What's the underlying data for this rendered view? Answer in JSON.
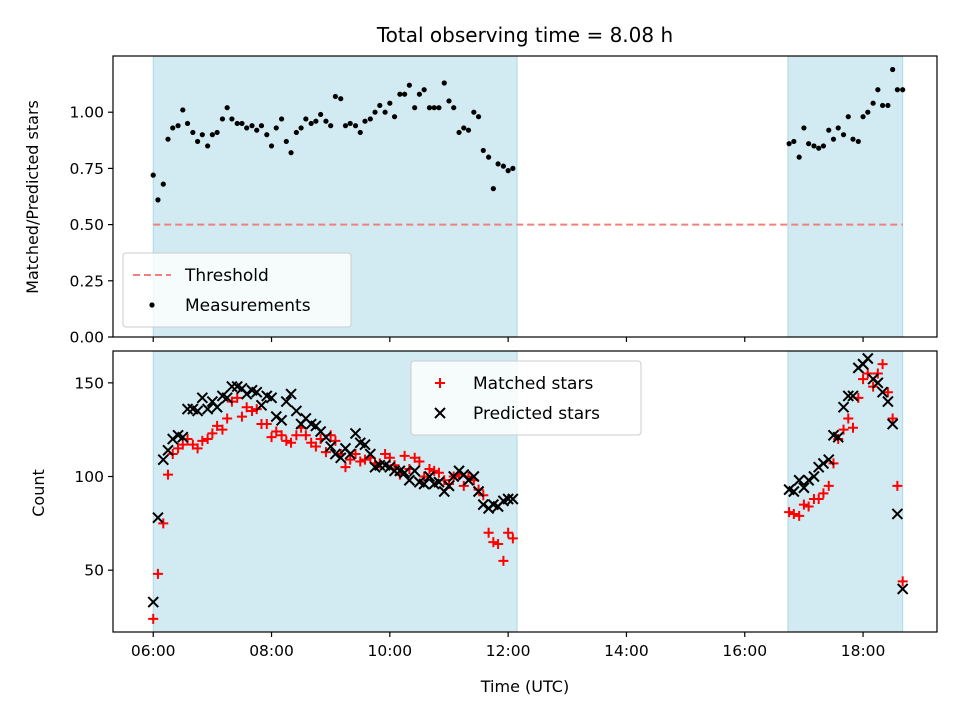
{
  "chart_data": {
    "type": "scatter",
    "title": "Total observing time = 8.08 h",
    "xlabel": "Time (UTC)",
    "x_unit": "hours UTC",
    "xlim": [
      5.32,
      19.25
    ],
    "x_ticks": [
      6,
      8,
      10,
      12,
      14,
      16,
      18
    ],
    "x_tick_labels": [
      "06:00",
      "08:00",
      "10:00",
      "12:00",
      "14:00",
      "16:00",
      "18:00"
    ],
    "colors": {
      "shade": "#add8e6",
      "threshold": "#f08080",
      "measurements": "#000000",
      "matched": "#ff0000",
      "predicted": "#000000"
    },
    "shaded_intervals": [
      [
        6.0,
        12.15
      ],
      [
        16.73,
        18.67
      ]
    ],
    "panels": [
      {
        "id": "ratio",
        "ylabel": "Matched/Predicted stars",
        "ylim": [
          0,
          1.25
        ],
        "y_ticks": [
          0,
          0.25,
          0.5,
          0.75,
          1.0
        ],
        "y_tick_labels": [
          "0.00",
          "0.25",
          "0.50",
          "0.75",
          "1.00"
        ],
        "legend_position": "lower left",
        "threshold": {
          "name": "Threshold",
          "y": 0.5,
          "x_range": [
            6.0,
            18.67
          ]
        },
        "series": [
          {
            "name": "Measurements",
            "marker": "dot",
            "x": [
              6.0,
              6.08,
              6.17,
              6.25,
              6.33,
              6.42,
              6.5,
              6.58,
              6.67,
              6.75,
              6.83,
              6.92,
              7.0,
              7.08,
              7.17,
              7.25,
              7.33,
              7.42,
              7.5,
              7.58,
              7.67,
              7.75,
              7.83,
              7.92,
              8.0,
              8.08,
              8.17,
              8.25,
              8.33,
              8.42,
              8.5,
              8.58,
              8.67,
              8.75,
              8.83,
              8.92,
              9.0,
              9.08,
              9.17,
              9.25,
              9.33,
              9.42,
              9.5,
              9.58,
              9.67,
              9.75,
              9.83,
              9.92,
              10.0,
              10.08,
              10.17,
              10.25,
              10.33,
              10.42,
              10.5,
              10.58,
              10.67,
              10.75,
              10.83,
              10.92,
              11.0,
              11.08,
              11.17,
              11.25,
              11.33,
              11.42,
              11.5,
              11.58,
              11.67,
              11.75,
              11.83,
              11.92,
              12.0,
              12.08,
              16.75,
              16.83,
              16.92,
              17.0,
              17.08,
              17.17,
              17.25,
              17.33,
              17.42,
              17.5,
              17.58,
              17.67,
              17.75,
              17.83,
              17.92,
              18.0,
              18.08,
              18.17,
              18.25,
              18.33,
              18.42,
              18.5,
              18.58,
              18.67
            ],
            "y": [
              0.72,
              0.61,
              0.68,
              0.88,
              0.93,
              0.94,
              1.01,
              0.95,
              0.91,
              0.87,
              0.9,
              0.85,
              0.9,
              0.91,
              0.97,
              1.02,
              0.97,
              0.95,
              0.95,
              0.93,
              0.94,
              0.92,
              0.94,
              0.9,
              0.85,
              0.93,
              0.97,
              0.87,
              0.82,
              0.91,
              0.93,
              0.97,
              0.95,
              0.96,
              0.99,
              0.96,
              0.94,
              1.07,
              1.06,
              0.94,
              0.95,
              0.94,
              0.91,
              0.96,
              0.97,
              1.0,
              1.03,
              1.0,
              1.04,
              0.98,
              1.08,
              1.08,
              1.12,
              1.02,
              1.08,
              1.1,
              1.02,
              1.02,
              1.02,
              1.13,
              1.05,
              1.02,
              0.91,
              0.93,
              0.92,
              1.0,
              0.98,
              0.83,
              0.8,
              0.66,
              0.77,
              0.76,
              0.74,
              0.75,
              0.86,
              0.87,
              0.8,
              0.93,
              0.86,
              0.85,
              0.84,
              0.85,
              0.92,
              0.88,
              0.93,
              0.9,
              0.98,
              0.88,
              0.87,
              0.98,
              1.0,
              1.04,
              1.1,
              1.03,
              1.03,
              1.19,
              1.1,
              1.1
            ]
          }
        ]
      },
      {
        "id": "count",
        "ylabel": "Count",
        "ylim": [
          17,
          167
        ],
        "y_ticks": [
          50,
          100,
          150
        ],
        "y_tick_labels": [
          "50",
          "100",
          "150"
        ],
        "legend_position": "upper center",
        "series": [
          {
            "name": "Matched stars",
            "marker": "plus",
            "x": [
              6.0,
              6.08,
              6.17,
              6.25,
              6.33,
              6.42,
              6.5,
              6.58,
              6.67,
              6.75,
              6.83,
              6.92,
              7.0,
              7.08,
              7.17,
              7.25,
              7.33,
              7.42,
              7.5,
              7.58,
              7.67,
              7.75,
              7.83,
              7.92,
              8.0,
              8.08,
              8.17,
              8.25,
              8.33,
              8.42,
              8.5,
              8.58,
              8.67,
              8.75,
              8.83,
              8.92,
              9.0,
              9.08,
              9.17,
              9.25,
              9.33,
              9.42,
              9.5,
              9.58,
              9.67,
              9.75,
              9.83,
              9.92,
              10.0,
              10.08,
              10.17,
              10.25,
              10.33,
              10.42,
              10.5,
              10.58,
              10.67,
              10.75,
              10.83,
              10.92,
              11.0,
              11.08,
              11.17,
              11.25,
              11.33,
              11.42,
              11.5,
              11.58,
              11.67,
              11.75,
              11.83,
              11.92,
              12.0,
              12.08,
              16.75,
              16.83,
              16.92,
              17.0,
              17.08,
              17.17,
              17.25,
              17.33,
              17.42,
              17.5,
              17.58,
              17.67,
              17.75,
              17.83,
              17.92,
              18.0,
              18.08,
              18.17,
              18.25,
              18.33,
              18.42,
              18.5,
              18.58,
              18.67
            ],
            "y": [
              24,
              48,
              75,
              101,
              112,
              115,
              117,
              120,
              117,
              115,
              119,
              120,
              123,
              127,
              125,
              131,
              140,
              142,
              132,
              137,
              135,
              136,
              128,
              128,
              121,
              124,
              122,
              119,
              118,
              122,
              126,
              122,
              118,
              116,
              120,
              113,
              122,
              119,
              112,
              105,
              109,
              112,
              108,
              109,
              110,
              107,
              107,
              112,
              110,
              106,
              101,
              111,
              104,
              110,
              108,
              100,
              104,
              103,
              102,
              98,
              96,
              100,
              101,
              95,
              100,
              98,
              93,
              90,
              70,
              65,
              64,
              55,
              70,
              67,
              81,
              80,
              79,
              85,
              84,
              88,
              88,
              91,
              95,
              107,
              120,
              125,
              131,
              126,
              142,
              152,
              155,
              148,
              155,
              160,
              145,
              131,
              95,
              44
            ]
          },
          {
            "name": "Predicted stars",
            "marker": "x",
            "x": [
              6.0,
              6.08,
              6.17,
              6.25,
              6.33,
              6.42,
              6.5,
              6.58,
              6.67,
              6.75,
              6.83,
              6.92,
              7.0,
              7.08,
              7.17,
              7.25,
              7.33,
              7.42,
              7.5,
              7.58,
              7.67,
              7.75,
              7.83,
              7.92,
              8.0,
              8.08,
              8.17,
              8.25,
              8.33,
              8.42,
              8.5,
              8.58,
              8.67,
              8.75,
              8.83,
              8.92,
              9.0,
              9.08,
              9.17,
              9.25,
              9.33,
              9.42,
              9.5,
              9.58,
              9.67,
              9.75,
              9.83,
              9.92,
              10.0,
              10.08,
              10.17,
              10.25,
              10.33,
              10.42,
              10.5,
              10.58,
              10.67,
              10.75,
              10.83,
              10.92,
              11.0,
              11.08,
              11.17,
              11.25,
              11.33,
              11.42,
              11.5,
              11.58,
              11.67,
              11.75,
              11.83,
              11.92,
              12.0,
              12.08,
              16.75,
              16.83,
              16.92,
              17.0,
              17.08,
              17.17,
              17.25,
              17.33,
              17.42,
              17.5,
              17.58,
              17.67,
              17.75,
              17.83,
              17.92,
              18.0,
              18.08,
              18.17,
              18.25,
              18.33,
              18.42,
              18.5,
              18.58,
              18.67
            ],
            "y": [
              33,
              78,
              109,
              114,
              120,
              122,
              121,
              136,
              136,
              135,
              142,
              136,
              140,
              137,
              143,
              142,
              148,
              148,
              147,
              144,
              146,
              145,
              138,
              143,
              142,
              132,
              130,
              140,
              144,
              135,
              128,
              131,
              128,
              127,
              124,
              121,
              116,
              112,
              110,
              115,
              112,
              123,
              118,
              117,
              112,
              105,
              106,
              106,
              105,
              103,
              103,
              102,
              98,
              103,
              97,
              96,
              100,
              96,
              97,
              92,
              95,
              100,
              103,
              101,
              98,
              100,
              92,
              85,
              83,
              85,
              84,
              87,
              88,
              88,
              93,
              92,
              98,
              94,
              98,
              100,
              105,
              107,
              109,
              122,
              121,
              137,
              143,
              143,
              158,
              160,
              163,
              152,
              150,
              145,
              140,
              128,
              80,
              40
            ]
          }
        ]
      }
    ]
  }
}
